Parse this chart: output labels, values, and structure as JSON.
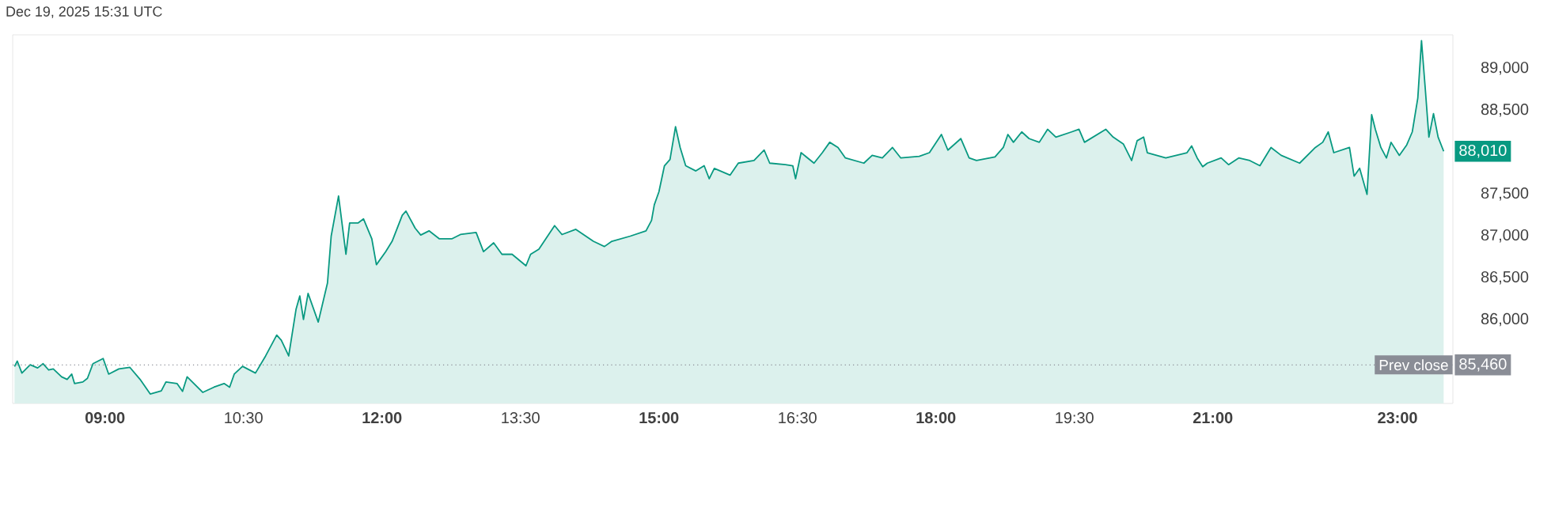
{
  "chart_data": {
    "type": "area",
    "title": "Dec 19, 2025 15:31 UTC",
    "xlim": [
      8.0,
      23.6
    ],
    "ylim": [
      85000,
      89400
    ],
    "xticks": [
      {
        "value": 9,
        "label": "09:00"
      },
      {
        "value": 10.5,
        "label": "10:30"
      },
      {
        "value": 12,
        "label": "12:00"
      },
      {
        "value": 13.5,
        "label": "13:30"
      },
      {
        "value": 15,
        "label": "15:00"
      },
      {
        "value": 16.5,
        "label": "16:30"
      },
      {
        "value": 18,
        "label": "18:00"
      },
      {
        "value": 19.5,
        "label": "19:30"
      },
      {
        "value": 21,
        "label": "21:00"
      },
      {
        "value": 23,
        "label": "23:00"
      }
    ],
    "yticks": [
      {
        "value": 86000,
        "label": "86,000"
      },
      {
        "value": 86500,
        "label": "86,500"
      },
      {
        "value": 87000,
        "label": "87,000"
      },
      {
        "value": 87500,
        "label": "87,500"
      },
      {
        "value": 88500,
        "label": "88,500"
      },
      {
        "value": 89000,
        "label": "89,000"
      }
    ],
    "grid": false,
    "ref_lines": [
      {
        "axis": "y",
        "value": 85460,
        "label": "Prev close",
        "color": "#8a8d96",
        "line_style": "dotted"
      }
    ],
    "annotations": [
      {
        "text": "88,010",
        "x": 23.5,
        "y": 88010
      },
      {
        "text": "85,460",
        "x": 23.5,
        "y": 85460
      }
    ],
    "series": [
      {
        "color": "#089981",
        "x": [
          8.02,
          8.05,
          8.1,
          8.19,
          8.27,
          8.33,
          8.39,
          8.44,
          8.53,
          8.59,
          8.64,
          8.67,
          8.76,
          8.81,
          8.87,
          8.98,
          9.04,
          9.15,
          9.27,
          9.38,
          9.49,
          9.61,
          9.66,
          9.78,
          9.84,
          9.89,
          10.06,
          10.18,
          10.29,
          10.35,
          10.4,
          10.49,
          10.63,
          10.74,
          10.86,
          10.91,
          10.99,
          11.07,
          11.11,
          11.15,
          11.2,
          11.31,
          11.41,
          11.45,
          11.53,
          11.61,
          11.65,
          11.74,
          11.8,
          11.89,
          11.94,
          12.04,
          12.11,
          12.22,
          12.26,
          12.36,
          12.42,
          12.51,
          12.62,
          12.76,
          12.85,
          13.02,
          13.1,
          13.21,
          13.3,
          13.41,
          13.56,
          13.61,
          13.7,
          13.87,
          13.95,
          14.1,
          14.29,
          14.41,
          14.49,
          14.69,
          14.86,
          14.92,
          14.95,
          15.0,
          15.06,
          15.12,
          15.18,
          15.23,
          15.29,
          15.4,
          15.49,
          15.545,
          15.6,
          15.77,
          15.86,
          16.03,
          16.14,
          16.2,
          16.37,
          16.45,
          16.48,
          16.54,
          16.68,
          16.77,
          16.85,
          16.94,
          17.02,
          17.22,
          17.31,
          17.42,
          17.53,
          17.62,
          17.82,
          17.93,
          18.06,
          18.13,
          18.27,
          18.36,
          18.44,
          18.64,
          18.73,
          18.78,
          18.84,
          18.93,
          19.01,
          19.12,
          19.21,
          19.3,
          19.47,
          19.55,
          19.61,
          19.84,
          19.92,
          20.03,
          20.12,
          20.18,
          20.25,
          20.29,
          20.49,
          20.72,
          20.77,
          20.83,
          20.89,
          20.94,
          21.09,
          21.17,
          21.28,
          21.4,
          21.51,
          21.63,
          21.74,
          21.94,
          22.11,
          22.19,
          22.25,
          22.31,
          22.48,
          22.53,
          22.59,
          22.67,
          22.72,
          22.76,
          22.82,
          22.88,
          22.93,
          23.02,
          23.1,
          23.16,
          23.22,
          23.26,
          23.3,
          23.34,
          23.39,
          23.44,
          23.5
        ],
        "values": [
          85440,
          85505,
          85362,
          85461,
          85424,
          85474,
          85399,
          85412,
          85318,
          85287,
          85350,
          85238,
          85256,
          85300,
          85474,
          85536,
          85350,
          85412,
          85430,
          85287,
          85113,
          85150,
          85256,
          85238,
          85144,
          85318,
          85132,
          85194,
          85238,
          85194,
          85350,
          85443,
          85362,
          85567,
          85816,
          85754,
          85567,
          86127,
          86282,
          86002,
          86313,
          85971,
          86438,
          86997,
          87476,
          86780,
          87153,
          87153,
          87203,
          86966,
          86656,
          86811,
          86935,
          87246,
          87296,
          87091,
          87010,
          87060,
          86966,
          86966,
          87016,
          87041,
          86811,
          86917,
          86780,
          86780,
          86643,
          86780,
          86842,
          87122,
          87016,
          87078,
          86935,
          86873,
          86935,
          86997,
          87060,
          87184,
          87371,
          87526,
          87837,
          87912,
          88303,
          88055,
          87837,
          87775,
          87837,
          87682,
          87806,
          87725,
          87868,
          87899,
          88024,
          87868,
          87850,
          87837,
          87682,
          87993,
          87868,
          87993,
          88117,
          88055,
          87930,
          87868,
          87961,
          87930,
          88055,
          87930,
          87949,
          87993,
          88210,
          88024,
          88161,
          87930,
          87899,
          87943,
          88055,
          88210,
          88117,
          88241,
          88161,
          88117,
          88272,
          88179,
          88241,
          88272,
          88117,
          88272,
          88179,
          88098,
          87899,
          88136,
          88179,
          87993,
          87930,
          87993,
          88074,
          87930,
          87825,
          87868,
          87930,
          87850,
          87930,
          87899,
          87837,
          88055,
          87961,
          87868,
          88055,
          88117,
          88241,
          87993,
          88055,
          87713,
          87806,
          87495,
          88447,
          88272,
          88055,
          87930,
          88117,
          87961,
          88086,
          88241,
          88646,
          89330,
          88770,
          88179,
          88459,
          88179,
          88010
        ]
      }
    ]
  }
}
